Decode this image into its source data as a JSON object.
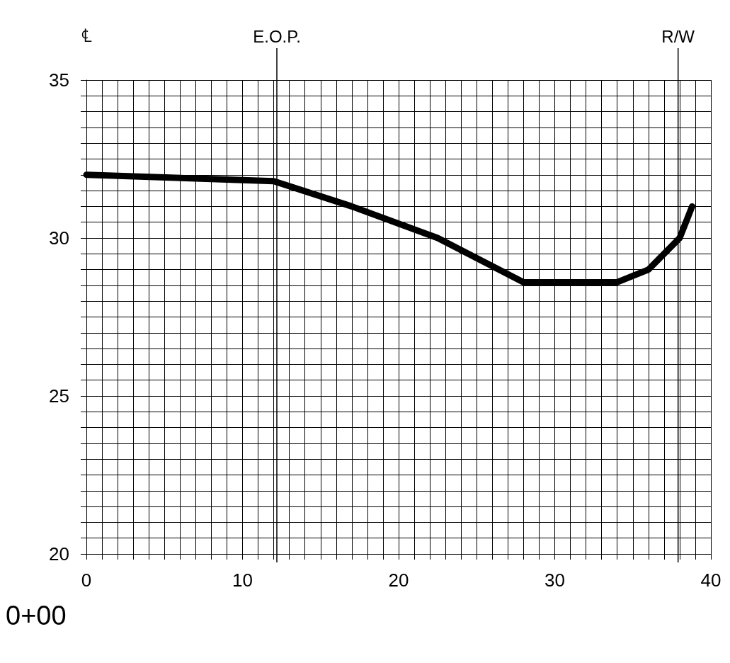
{
  "chart_data": {
    "type": "line",
    "x": [
      0,
      12,
      17,
      22.5,
      28,
      34,
      36,
      38,
      38.8
    ],
    "series": [
      {
        "color": "#000000",
        "values": [
          32,
          31.8,
          31,
          30,
          28.6,
          28.6,
          29,
          30,
          31
        ]
      }
    ],
    "xlim": [
      0,
      40
    ],
    "xticks": [
      0,
      {
        "value": 1,
        "label": null
      },
      {
        "value": 2,
        "label": null
      },
      {
        "value": 3,
        "label": null
      },
      {
        "value": 4,
        "label": null
      },
      {
        "value": 5,
        "label": null
      },
      {
        "value": 6,
        "label": null
      },
      {
        "value": 7,
        "label": null
      },
      {
        "value": 8,
        "label": null
      },
      {
        "value": 9,
        "label": null
      },
      10,
      {
        "value": 11,
        "label": null
      },
      {
        "value": 12,
        "label": null
      },
      {
        "value": 13,
        "label": null
      },
      {
        "value": 14,
        "label": null
      },
      {
        "value": 15,
        "label": null
      },
      {
        "value": 16,
        "label": null
      },
      {
        "value": 17,
        "label": null
      },
      {
        "value": 18,
        "label": null
      },
      {
        "value": 19,
        "label": null
      },
      20,
      {
        "value": 21,
        "label": null
      },
      {
        "value": 22,
        "label": null
      },
      {
        "value": 23,
        "label": null
      },
      {
        "value": 24,
        "label": null
      },
      {
        "value": 25,
        "label": null
      },
      {
        "value": 26,
        "label": null
      },
      {
        "value": 27,
        "label": null
      },
      {
        "value": 28,
        "label": null
      },
      {
        "value": 29,
        "label": null
      },
      30,
      {
        "value": 31,
        "label": null
      },
      {
        "value": 32,
        "label": null
      },
      {
        "value": 33,
        "label": null
      },
      {
        "value": 34,
        "label": null
      },
      {
        "value": 35,
        "label": null
      },
      {
        "value": 36,
        "label": null
      },
      {
        "value": 37,
        "label": null
      },
      {
        "value": 38,
        "label": null
      },
      {
        "value": 39,
        "label": null
      },
      40
    ],
    "ylim": [
      20,
      35
    ],
    "yticks": [
      20,
      {
        "value": 20.5,
        "label": null
      },
      {
        "value": 21,
        "label": null
      },
      {
        "value": 21.5,
        "label": null
      },
      {
        "value": 22,
        "label": null
      },
      {
        "value": 22.5,
        "label": null
      },
      {
        "value": 23,
        "label": null
      },
      {
        "value": 23.5,
        "label": null
      },
      {
        "value": 24,
        "label": null
      },
      {
        "value": 24.5,
        "label": null
      },
      25,
      {
        "value": 25.5,
        "label": null
      },
      {
        "value": 26,
        "label": null
      },
      {
        "value": 26.5,
        "label": null
      },
      {
        "value": 27,
        "label": null
      },
      {
        "value": 27.5,
        "label": null
      },
      {
        "value": 28,
        "label": null
      },
      {
        "value": 28.5,
        "label": null
      },
      {
        "value": 29,
        "label": null
      },
      {
        "value": 29.5,
        "label": null
      },
      30,
      {
        "value": 30.5,
        "label": null
      },
      {
        "value": 31,
        "label": null
      },
      {
        "value": 31.5,
        "label": null
      },
      {
        "value": 32,
        "label": null
      },
      {
        "value": 32.5,
        "label": null
      },
      {
        "value": 33,
        "label": null
      },
      {
        "value": 33.5,
        "label": null
      },
      {
        "value": 34,
        "label": null
      },
      {
        "value": 34.5,
        "label": null
      },
      35
    ],
    "grid": true,
    "marker": "none",
    "line_style": "solid",
    "ref_lines": [
      {
        "axis": "x",
        "value": 12.2,
        "label": "E.O.P."
      },
      {
        "axis": "x",
        "value": 37.9,
        "label": "R/W"
      }
    ],
    "annotations": [
      "℄",
      "0+00"
    ]
  }
}
